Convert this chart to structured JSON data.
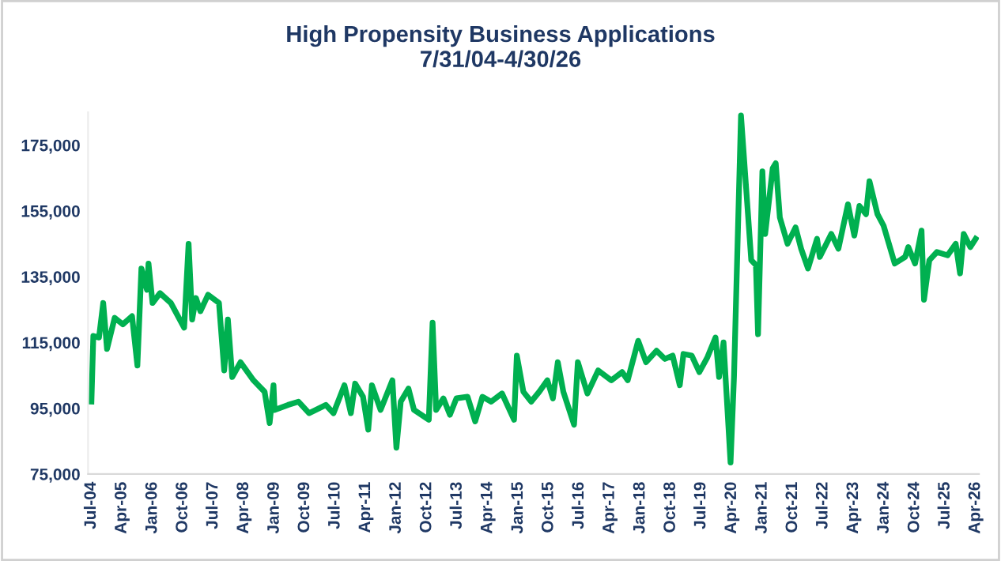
{
  "chart_data": {
    "type": "line",
    "title": "High Propensity Business Applications\n7/31/04-4/30/26",
    "x": [
      "2004-07-01",
      "2004-07-18",
      "2004-09-07",
      "2004-10-15",
      "2004-11-18",
      "2005-01-26",
      "2005-04-09",
      "2005-07-01",
      "2005-08-18",
      "2005-09-23",
      "2005-11-12",
      "2005-11-26",
      "2006-01-01",
      "2006-03-09",
      "2006-06-15",
      "2006-10-12",
      "2006-11-21",
      "2006-12-23",
      "2007-01-26",
      "2007-03-07",
      "2007-05-15",
      "2007-08-21",
      "2007-10-07",
      "2007-11-09",
      "2007-12-18",
      "2008-03-01",
      "2008-06-26",
      "2008-10-04",
      "2008-11-18",
      "2008-12-23",
      "2009-01-01",
      "2009-05-01",
      "2009-08-04",
      "2009-11-07",
      "2010-04-07",
      "2010-06-15",
      "2010-09-21",
      "2010-11-18",
      "2010-12-26",
      "2011-03-07",
      "2011-04-23",
      "2011-05-26",
      "2011-08-12",
      "2011-11-26",
      "2012-01-01",
      "2012-02-09",
      "2012-04-18",
      "2012-06-07",
      "2012-10-18",
      "2012-11-21",
      "2012-12-23",
      "2013-02-26",
      "2013-04-26",
      "2013-06-23",
      "2013-10-01",
      "2013-12-09",
      "2014-02-12",
      "2014-05-01",
      "2014-08-07",
      "2014-11-23",
      "2014-12-18",
      "2015-02-15",
      "2015-04-26",
      "2015-07-07",
      "2015-09-18",
      "2015-11-07",
      "2015-12-21",
      "2016-02-09",
      "2016-05-15",
      "2016-06-18",
      "2016-09-12",
      "2016-12-18",
      "2017-04-15",
      "2017-07-21",
      "2017-09-09",
      "2017-12-12",
      "2018-02-21",
      "2018-05-26",
      "2018-08-09",
      "2018-10-18",
      "2018-12-21",
      "2019-01-23",
      "2019-04-07",
      "2019-06-15",
      "2019-08-26",
      "2019-11-07",
      "2019-12-09",
      "2020-01-18",
      "2020-03-21",
      "2020-04-21",
      "2020-06-23",
      "2020-09-23",
      "2020-11-04",
      "2020-11-23",
      "2021-01-01",
      "2021-01-26",
      "2021-04-04",
      "2021-05-01",
      "2021-06-07",
      "2021-08-15",
      "2021-10-26",
      "2021-12-15",
      "2022-02-15",
      "2022-05-07",
      "2022-06-01",
      "2022-09-12",
      "2022-11-15",
      "2023-02-09",
      "2023-04-07",
      "2023-05-23",
      "2023-07-21",
      "2023-08-21",
      "2023-11-01",
      "2023-12-26",
      "2024-04-04",
      "2024-07-07",
      "2024-08-04",
      "2024-10-04",
      "2024-12-01",
      "2024-12-23",
      "2025-02-09",
      "2025-04-18",
      "2025-07-23",
      "2025-10-04",
      "2025-11-12",
      "2025-12-15",
      "2026-02-12",
      "2026-04-01"
    ],
    "series": [
      {
        "color": "#00b050",
        "values": [
          97000,
          117000,
          116500,
          127000,
          113000,
          122500,
          120500,
          123000,
          108000,
          137500,
          131000,
          139000,
          127000,
          130000,
          127000,
          119500,
          145000,
          122000,
          128500,
          124500,
          129500,
          127000,
          106500,
          122000,
          104500,
          109000,
          103500,
          100000,
          90500,
          102000,
          94500,
          96000,
          97000,
          93500,
          96000,
          93500,
          102000,
          93500,
          102500,
          98500,
          88500,
          102000,
          94500,
          103500,
          83000,
          97000,
          101000,
          94500,
          91500,
          121000,
          94500,
          98000,
          93000,
          98000,
          98500,
          91000,
          98500,
          97000,
          99500,
          91500,
          111000,
          100000,
          97000,
          100000,
          103500,
          98000,
          109000,
          100000,
          90000,
          109000,
          99500,
          106500,
          103500,
          106000,
          103500,
          115500,
          109000,
          112500,
          110000,
          111000,
          102000,
          111500,
          111000,
          106000,
          110500,
          116500,
          104500,
          115000,
          78500,
          104500,
          184000,
          140000,
          138500,
          117500,
          167000,
          148000,
          168000,
          169500,
          153000,
          145000,
          150000,
          143500,
          137500,
          146500,
          141000,
          148000,
          143500,
          157000,
          147500,
          156500,
          154000,
          164000,
          154000,
          150500,
          139000,
          141000,
          144000,
          139000,
          149000,
          128000,
          140000,
          142500,
          141500,
          145000,
          136000,
          148000,
          144000,
          146500
        ]
      }
    ],
    "xlim": [
      "2004-06-01",
      "2026-05-01"
    ],
    "xticks": [
      {
        "value": "2004-07",
        "label": "Jul-04"
      },
      {
        "value": "2005-04",
        "label": "Apr-05"
      },
      {
        "value": "2006-01",
        "label": "Jan-06"
      },
      {
        "value": "2006-10",
        "label": "Oct-06"
      },
      {
        "value": "2007-07",
        "label": "Jul-07"
      },
      {
        "value": "2008-04",
        "label": "Apr-08"
      },
      {
        "value": "2009-01",
        "label": "Jan-09"
      },
      {
        "value": "2009-10",
        "label": "Oct-09"
      },
      {
        "value": "2010-07",
        "label": "Jul-10"
      },
      {
        "value": "2011-04",
        "label": "Apr-11"
      },
      {
        "value": "2012-01",
        "label": "Jan-12"
      },
      {
        "value": "2012-10",
        "label": "Oct-12"
      },
      {
        "value": "2013-07",
        "label": "Jul-13"
      },
      {
        "value": "2014-04",
        "label": "Apr-14"
      },
      {
        "value": "2015-01",
        "label": "Jan-15"
      },
      {
        "value": "2015-10",
        "label": "Oct-15"
      },
      {
        "value": "2016-07",
        "label": "Jul-16"
      },
      {
        "value": "2017-04",
        "label": "Apr-17"
      },
      {
        "value": "2018-01",
        "label": "Jan-18"
      },
      {
        "value": "2018-10",
        "label": "Oct-18"
      },
      {
        "value": "2019-07",
        "label": "Jul-19"
      },
      {
        "value": "2020-04",
        "label": "Apr-20"
      },
      {
        "value": "2021-01",
        "label": "Jan-21"
      },
      {
        "value": "2021-10",
        "label": "Oct-21"
      },
      {
        "value": "2022-07",
        "label": "Jul-22"
      },
      {
        "value": "2023-04",
        "label": "Apr-23"
      },
      {
        "value": "2024-01",
        "label": "Jan-24"
      },
      {
        "value": "2024-10",
        "label": "Oct-24"
      },
      {
        "value": "2025-07",
        "label": "Jul-25"
      },
      {
        "value": "2026-04",
        "label": "Apr-26"
      }
    ],
    "ylim": [
      75000,
      185000
    ],
    "yticks": [
      {
        "value": 75000,
        "label": "75,000"
      },
      {
        "value": 95000,
        "label": "95,000"
      },
      {
        "value": 115000,
        "label": "115,000"
      },
      {
        "value": 135000,
        "label": "135,000"
      },
      {
        "value": 155000,
        "label": "155,000"
      },
      {
        "value": 175000,
        "label": "175,000"
      }
    ],
    "grid": false,
    "marker": "none",
    "line_style": "solid"
  }
}
